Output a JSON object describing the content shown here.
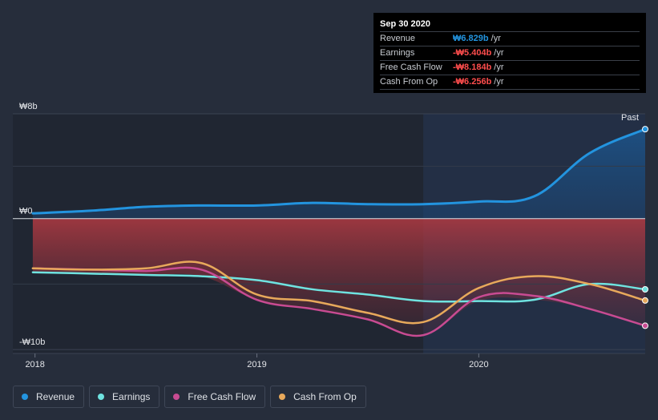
{
  "tooltip": {
    "date": "Sep 30 2020",
    "rows": [
      {
        "label": "Revenue",
        "value": "₩6.829b",
        "unit": "/yr",
        "tone": "pos"
      },
      {
        "label": "Earnings",
        "value": "-₩5.404b",
        "unit": "/yr",
        "tone": "neg"
      },
      {
        "label": "Free Cash Flow",
        "value": "-₩8.184b",
        "unit": "/yr",
        "tone": "neg"
      },
      {
        "label": "Cash From Op",
        "value": "-₩6.256b",
        "unit": "/yr",
        "tone": "neg"
      }
    ]
  },
  "legend": [
    {
      "label": "Revenue",
      "color": "#2394df"
    },
    {
      "label": "Earnings",
      "color": "#6fe3e0"
    },
    {
      "label": "Free Cash Flow",
      "color": "#c84b92"
    },
    {
      "label": "Cash From Op",
      "color": "#e8a95b"
    }
  ],
  "colors": {
    "revenue": "#2394df",
    "earnings": "#6fe3e0",
    "fcf": "#c84b92",
    "cfo": "#e8a95b",
    "past_label": "#ffffff"
  },
  "chart_data": {
    "type": "line",
    "title": "",
    "xlabel": "",
    "ylabel": "",
    "y_ticks": [
      {
        "value": 8,
        "label": "₩8b"
      },
      {
        "value": 0,
        "label": "₩0"
      },
      {
        "value": -10,
        "label": "-₩10b"
      }
    ],
    "x_ticks": [
      {
        "value": 2018.0,
        "label": "2018"
      },
      {
        "value": 2019.0,
        "label": "2019"
      },
      {
        "value": 2020.0,
        "label": "2020"
      }
    ],
    "xlim": [
      2017.9,
      2020.75
    ],
    "ylim": [
      -10.3,
      8
    ],
    "past_start": 2019.75,
    "past_label": "Past",
    "x": [
      2017.99,
      2018.25,
      2018.5,
      2018.75,
      2019.0,
      2019.25,
      2019.5,
      2019.75,
      2020.0,
      2020.25,
      2020.5,
      2020.75
    ],
    "series": [
      {
        "name": "Revenue",
        "key": "revenue",
        "values": [
          0.4,
          0.6,
          0.9,
          1.0,
          1.0,
          1.2,
          1.1,
          1.1,
          1.3,
          1.7,
          5.0,
          6.829
        ]
      },
      {
        "name": "Earnings",
        "key": "earnings",
        "values": [
          -4.1,
          -4.2,
          -4.3,
          -4.4,
          -4.7,
          -5.4,
          -5.8,
          -6.3,
          -6.3,
          -6.2,
          -5.0,
          -5.404
        ]
      },
      {
        "name": "Free Cash Flow",
        "key": "fcf",
        "values": [
          -3.8,
          -3.9,
          -4.0,
          -3.9,
          -6.2,
          -6.9,
          -7.7,
          -8.9,
          -6.0,
          -5.9,
          -6.9,
          -8.184
        ]
      },
      {
        "name": "Cash From Op",
        "key": "cfo",
        "values": [
          -3.8,
          -3.9,
          -3.8,
          -3.4,
          -5.8,
          -6.3,
          -7.2,
          -7.9,
          -5.3,
          -4.4,
          -5.0,
          -6.256
        ]
      }
    ]
  }
}
